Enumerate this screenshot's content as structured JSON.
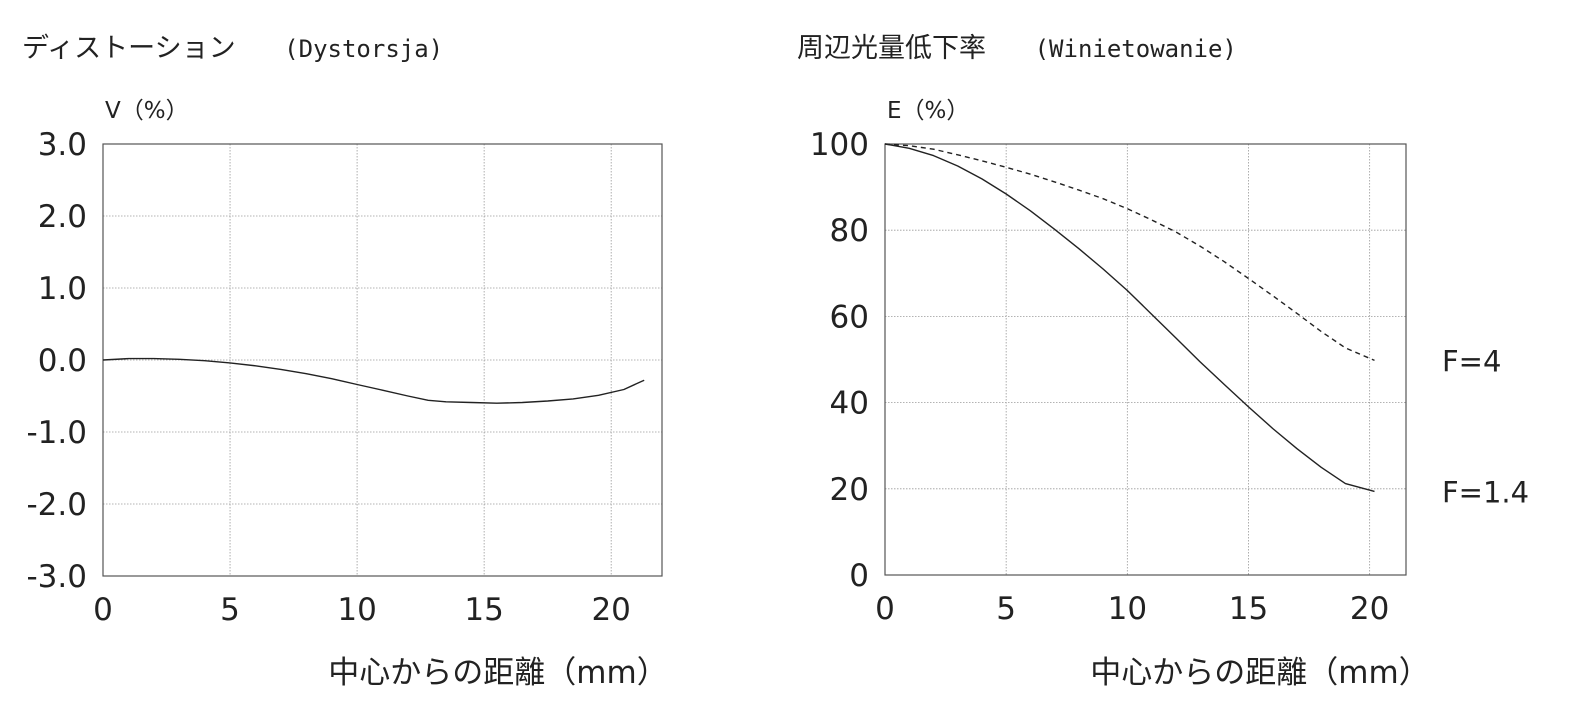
{
  "chart_data": [
    {
      "type": "line",
      "title": "ディストーション",
      "subtitle": "(Dystorsja)",
      "ylabel": "V（%）",
      "xlabel": "中心からの距離（mm）",
      "xlim": [
        0,
        22
      ],
      "ylim": [
        -3.0,
        3.0
      ],
      "x_ticks": [
        "0",
        "5",
        "10",
        "15",
        "20"
      ],
      "y_ticks": [
        "3.0",
        "2.0",
        "1.0",
        "0.0",
        "-1.0",
        "-2.0",
        "-3.0"
      ],
      "grid": true,
      "series": [
        {
          "style": "solid",
          "x": [
            0,
            1,
            2,
            3,
            4,
            5,
            6,
            7,
            8,
            9,
            10,
            11,
            12,
            12.8,
            13.5,
            14.5,
            15.5,
            16.5,
            17.5,
            18.5,
            19.5,
            20.5,
            21.3
          ],
          "y": [
            0.0,
            0.02,
            0.02,
            0.01,
            -0.01,
            -0.04,
            -0.08,
            -0.13,
            -0.19,
            -0.26,
            -0.34,
            -0.42,
            -0.5,
            -0.56,
            -0.58,
            -0.59,
            -0.6,
            -0.59,
            -0.57,
            -0.54,
            -0.49,
            -0.41,
            -0.28
          ]
        }
      ]
    },
    {
      "type": "line",
      "title": "周辺光量低下率",
      "subtitle": "(Winietowanie)",
      "ylabel": "E（%）",
      "xlabel": "中心からの距離（mm）",
      "xlim": [
        0,
        21.5
      ],
      "ylim": [
        0,
        100
      ],
      "x_ticks": [
        "0",
        "5",
        "10",
        "15",
        "20"
      ],
      "y_ticks": [
        "100",
        "80",
        "60",
        "40",
        "20",
        "0"
      ],
      "grid": true,
      "series": [
        {
          "name": "F=4",
          "style": "dashed",
          "x": [
            0,
            1,
            2,
            3,
            4,
            5,
            6,
            7,
            8,
            9,
            10,
            11,
            12,
            13,
            14,
            15,
            16,
            17,
            18,
            19,
            20.2
          ],
          "y": [
            100,
            99.6,
            98.8,
            97.5,
            96.1,
            94.6,
            93.0,
            91.2,
            89.3,
            87.3,
            85.0,
            82.4,
            79.6,
            76.3,
            72.7,
            68.8,
            64.8,
            60.7,
            56.5,
            52.7,
            49.8
          ]
        },
        {
          "name": "F=1.4",
          "style": "solid",
          "x": [
            0,
            1,
            2,
            3,
            4,
            5,
            6,
            7,
            8,
            9,
            10,
            11,
            12,
            13,
            14,
            15,
            16,
            17,
            18,
            19,
            20.2
          ],
          "y": [
            100,
            99.0,
            97.3,
            94.9,
            91.9,
            88.4,
            84.5,
            80.2,
            75.7,
            71.0,
            66.0,
            60.5,
            55.0,
            49.5,
            44.2,
            39.0,
            34.0,
            29.3,
            25.0,
            21.2,
            19.4
          ]
        }
      ]
    }
  ],
  "colors": {
    "line": "#222222",
    "grid": "#9a9a9a",
    "frame": "#555555"
  }
}
